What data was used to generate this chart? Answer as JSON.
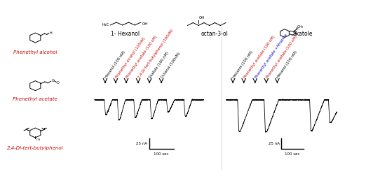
{
  "background_color": "#ffffff",
  "chemical_structures_left": [
    {
      "name": "Phenethyl alcohol",
      "color": "#cc0000"
    },
    {
      "name": "Phenethyl acetate",
      "color": "#cc0000"
    },
    {
      "name": "2,4-Di-tert-butylphenol",
      "color": "#cc0000"
    }
  ],
  "chemical_structures_top": [
    {
      "name": "1- Hexanol"
    },
    {
      "name": "octan-3-ol"
    },
    {
      "name": "Skatole"
    }
  ],
  "panel_left": {
    "labels": [
      {
        "text": "Hexanol (100 nM)",
        "color": "#000000"
      },
      {
        "text": "Phenethyl alcohol (100nM)",
        "color": "#cc0000"
      },
      {
        "text": "Phenethyl acetate (100 nM)",
        "color": "#cc0000"
      },
      {
        "text": "2,4-Di-tert-butylphenol (100nM)",
        "color": "#cc0000"
      },
      {
        "text": "Skatole (100 nM)",
        "color": "#000000"
      },
      {
        "text": "Octanol (100nM)",
        "color": "#000000"
      }
    ],
    "scale_bar_label_y": "25 nA",
    "scale_bar_label_x": "100 sec"
  },
  "panel_right": {
    "labels": [
      {
        "text": "Hexanol (100 nM)",
        "color": "#000000"
      },
      {
        "text": "Phenethyl acetate (100 nM)",
        "color": "#cc0000"
      },
      {
        "text": "Phenethyl acetate +Atropine",
        "color": "#0000cc"
      },
      {
        "text": "Phenethyl acetate (100 nM)",
        "color": "#cc0000"
      },
      {
        "text": "Hexanol (100 nM)",
        "color": "#000000"
      }
    ],
    "scale_bar_label_y": "25 nA",
    "scale_bar_label_x": "100 sec"
  }
}
